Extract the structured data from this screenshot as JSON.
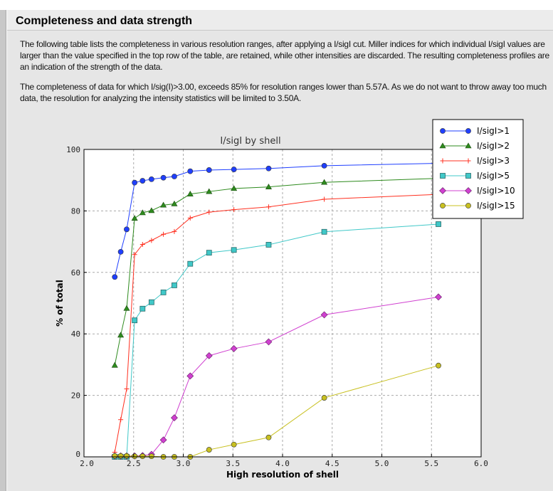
{
  "section": {
    "title": "Completeness and data strength",
    "paragraph1": "The following table lists the completeness in various resolution ranges, after applying a I/sigI cut. Miller indices for which individual I/sigI values are larger than the value specified in the top row of the table, are retained, while other intensities are discarded. The resulting completeness profiles are an indication of the strength of the data.",
    "paragraph2": "The completeness of data for which I/sig(I)>3.00, exceeds  85% for resolution ranges lower than 5.57A. As we do not want to throw away too much data, the resolution for analyzing the intensity statistics will be limited to 3.50A."
  },
  "chart_data": {
    "type": "line",
    "title": "I/sigI by shell",
    "xlabel": "High resolution of shell",
    "ylabel": "% of total",
    "xlim": [
      2.0,
      6.0
    ],
    "ylim": [
      0,
      100
    ],
    "xticks": [
      "2.0",
      "2.5",
      "3.0",
      "3.5",
      "4.0",
      "4.5",
      "5.0",
      "5.5",
      "6.0"
    ],
    "yticks": [
      "0",
      "20",
      "40",
      "60",
      "80",
      "100"
    ],
    "grid": true,
    "legend_position": "top-right",
    "x": [
      2.31,
      2.37,
      2.43,
      2.51,
      2.59,
      2.68,
      2.8,
      2.91,
      3.07,
      3.26,
      3.51,
      3.86,
      4.42,
      5.57
    ],
    "series": [
      {
        "name": "I/sigI>1",
        "color": "#1f3fff",
        "marker": "circle",
        "values": [
          58.5,
          66.7,
          74.0,
          89.2,
          89.8,
          90.3,
          90.8,
          91.2,
          92.9,
          93.3,
          93.5,
          93.8,
          94.7,
          95.5
        ]
      },
      {
        "name": "I/sigI>2",
        "color": "#2e8b1e",
        "marker": "triangle",
        "values": [
          29.8,
          39.6,
          48.3,
          77.6,
          79.4,
          80.1,
          81.9,
          82.3,
          85.5,
          86.3,
          87.3,
          87.8,
          89.3,
          90.6
        ]
      },
      {
        "name": "I/sigI>3",
        "color": "#ff3020",
        "marker": "plus",
        "values": [
          1.5,
          12.1,
          22.1,
          65.8,
          69.1,
          70.4,
          72.4,
          73.3,
          77.7,
          79.6,
          80.4,
          81.3,
          83.8,
          85.4
        ]
      },
      {
        "name": "I/sigI>5",
        "color": "#40c8c8",
        "marker": "square",
        "values": [
          0,
          0,
          0,
          44.4,
          48.2,
          50.3,
          53.5,
          55.8,
          62.8,
          66.4,
          67.3,
          69.0,
          73.2,
          75.7
        ]
      },
      {
        "name": "I/sigI>10",
        "color": "#d040d0",
        "marker": "diamond",
        "values": [
          0.3,
          0.3,
          0.3,
          0.3,
          0.4,
          0.8,
          5.5,
          12.7,
          26.3,
          32.9,
          35.2,
          37.4,
          46.2,
          52.0
        ]
      },
      {
        "name": "I/sigI>15",
        "color": "#c8c020",
        "marker": "circle",
        "values": [
          0.3,
          0.3,
          0.3,
          0.2,
          0.2,
          0.2,
          0,
          0,
          0,
          2.3,
          4.0,
          6.3,
          19.2,
          29.7
        ]
      }
    ]
  }
}
